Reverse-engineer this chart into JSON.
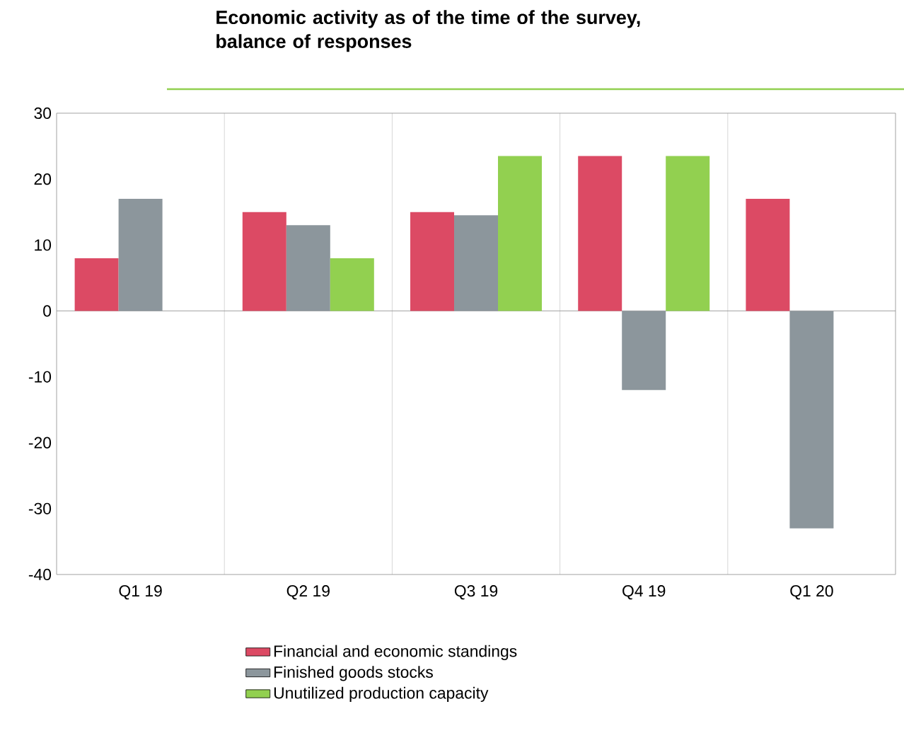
{
  "chart_data": {
    "type": "bar",
    "title": "Economic activity as of the time of the survey,\nbalance of responses",
    "categories": [
      "Q1 19",
      "Q2 19",
      "Q3 19",
      "Q4 19",
      "Q1 20"
    ],
    "series": [
      {
        "name": "Financial and economic standings",
        "color": "#dc4a64",
        "values": [
          8,
          15,
          15,
          23.5,
          17
        ]
      },
      {
        "name": "Finished goods stocks",
        "color": "#8c969c",
        "values": [
          17,
          13,
          14.5,
          -12,
          -33
        ]
      },
      {
        "name": "Unutilized production capacity",
        "color": "#92d050",
        "values": [
          0,
          8,
          23.5,
          23.5,
          null
        ]
      }
    ],
    "ylim": [
      -40,
      30
    ],
    "yticks": [
      -40,
      -30,
      -20,
      -10,
      0,
      10,
      20,
      30
    ],
    "grid": "x",
    "legend": "bottom"
  }
}
